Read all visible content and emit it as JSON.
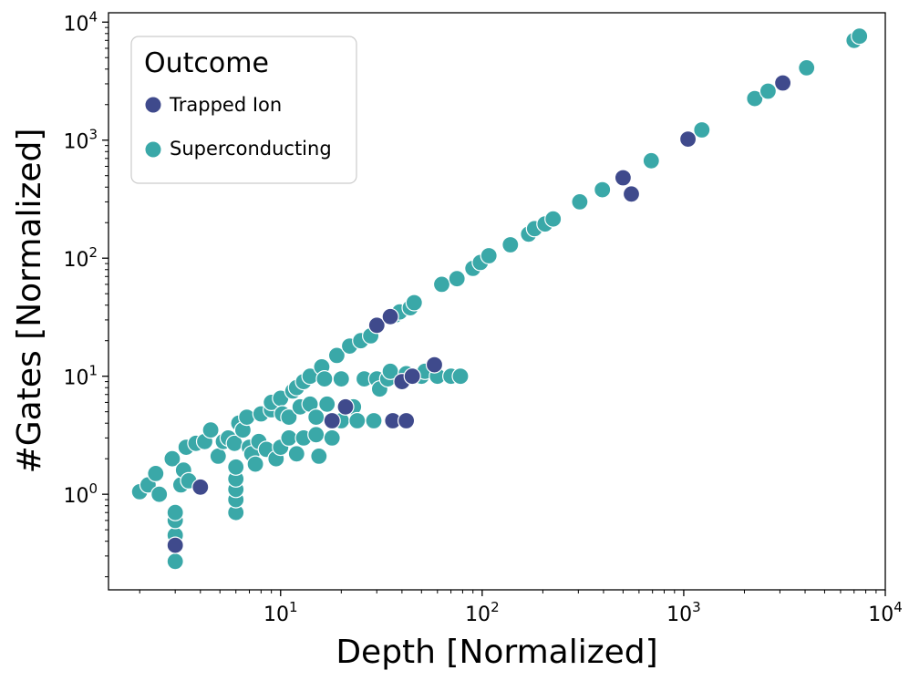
{
  "chart_data": {
    "type": "scatter",
    "title": "",
    "xlabel": "Depth [Normalized]",
    "ylabel": "#Gates [Normalized]",
    "xscale": "log",
    "yscale": "log",
    "xlim": [
      1.4,
      10000
    ],
    "ylim": [
      0.155,
      12000
    ],
    "x_ticks": [
      {
        "base": "10",
        "exp": "1",
        "value": 10
      },
      {
        "base": "10",
        "exp": "2",
        "value": 100
      },
      {
        "base": "10",
        "exp": "3",
        "value": 1000
      },
      {
        "base": "10",
        "exp": "4",
        "value": 10000
      }
    ],
    "y_ticks": [
      {
        "base": "10",
        "exp": "0",
        "value": 1
      },
      {
        "base": "10",
        "exp": "1",
        "value": 10
      },
      {
        "base": "10",
        "exp": "2",
        "value": 100
      },
      {
        "base": "10",
        "exp": "3",
        "value": 1000
      },
      {
        "base": "10",
        "exp": "4",
        "value": 10000
      }
    ],
    "grid": false,
    "legend": {
      "title": "Outcome",
      "position": "top-left",
      "entries": [
        {
          "label": "Trapped Ion",
          "series": "trapped_ion"
        },
        {
          "label": "Superconducting",
          "series": "superconducting"
        }
      ]
    },
    "series": [
      {
        "id": "superconducting",
        "name": "Superconducting",
        "color": "#3aa8a8",
        "points": [
          [
            2.0,
            1.05
          ],
          [
            2.2,
            1.2
          ],
          [
            2.4,
            1.5
          ],
          [
            2.5,
            1.0
          ],
          [
            2.9,
            2.0
          ],
          [
            3.0,
            0.27
          ],
          [
            3.0,
            0.45
          ],
          [
            3.0,
            0.6
          ],
          [
            3.0,
            0.7
          ],
          [
            3.2,
            1.2
          ],
          [
            3.3,
            1.6
          ],
          [
            3.4,
            2.5
          ],
          [
            3.5,
            1.3
          ],
          [
            3.8,
            2.7
          ],
          [
            4.2,
            2.8
          ],
          [
            4.5,
            3.5
          ],
          [
            4.9,
            2.1
          ],
          [
            5.2,
            2.8
          ],
          [
            5.5,
            3.0
          ],
          [
            5.9,
            2.7
          ],
          [
            6.0,
            0.7
          ],
          [
            6.0,
            0.9
          ],
          [
            6.0,
            1.1
          ],
          [
            6.0,
            1.35
          ],
          [
            6.0,
            1.7
          ],
          [
            6.2,
            4.0
          ],
          [
            6.5,
            3.5
          ],
          [
            6.8,
            4.5
          ],
          [
            7.0,
            2.5
          ],
          [
            7.2,
            2.2
          ],
          [
            7.5,
            1.8
          ],
          [
            7.8,
            2.8
          ],
          [
            8.0,
            4.8
          ],
          [
            8.5,
            2.4
          ],
          [
            9.0,
            5.2
          ],
          [
            9.0,
            6.0
          ],
          [
            9.5,
            2.0
          ],
          [
            10.0,
            6.5
          ],
          [
            10.0,
            2.5
          ],
          [
            10.2,
            4.8
          ],
          [
            11.0,
            3.0
          ],
          [
            11.0,
            4.5
          ],
          [
            11.5,
            7.5
          ],
          [
            12.0,
            8.0
          ],
          [
            12.0,
            2.2
          ],
          [
            12.5,
            5.5
          ],
          [
            13.0,
            3.0
          ],
          [
            13.0,
            9.0
          ],
          [
            14.0,
            10.0
          ],
          [
            14.0,
            5.8
          ],
          [
            15.0,
            4.5
          ],
          [
            15.0,
            3.2
          ],
          [
            15.5,
            2.1
          ],
          [
            16.0,
            12.0
          ],
          [
            16.5,
            9.5
          ],
          [
            17.0,
            5.8
          ],
          [
            18.0,
            3.0
          ],
          [
            19.0,
            15.0
          ],
          [
            20.0,
            4.2
          ],
          [
            20.0,
            9.5
          ],
          [
            22.0,
            18.0
          ],
          [
            23.0,
            5.5
          ],
          [
            24.0,
            4.2
          ],
          [
            25.0,
            20.0
          ],
          [
            26.0,
            9.5
          ],
          [
            28.0,
            22.0
          ],
          [
            29.0,
            4.2
          ],
          [
            30.0,
            9.5
          ],
          [
            31.0,
            7.8
          ],
          [
            34.0,
            9.5
          ],
          [
            35.0,
            11.0
          ],
          [
            37.0,
            33.0
          ],
          [
            39.0,
            35.0
          ],
          [
            42.0,
            10.5
          ],
          [
            44.0,
            38.0
          ],
          [
            46.0,
            42.0
          ],
          [
            47.0,
            10.0
          ],
          [
            50.0,
            10.0
          ],
          [
            52.0,
            11.0
          ],
          [
            60.0,
            10.0
          ],
          [
            63.0,
            60.0
          ],
          [
            70.0,
            10.0
          ],
          [
            75.0,
            67.0
          ],
          [
            78.0,
            10.0
          ],
          [
            90.0,
            82.0
          ],
          [
            98.0,
            92.0
          ],
          [
            108.0,
            105.0
          ],
          [
            138.0,
            130.0
          ],
          [
            170.0,
            160.0
          ],
          [
            182.0,
            178.0
          ],
          [
            205.0,
            195.0
          ],
          [
            225.0,
            215.0
          ],
          [
            305.0,
            300.0
          ],
          [
            395.0,
            380.0
          ],
          [
            690.0,
            670.0
          ],
          [
            1230.0,
            1220.0
          ],
          [
            2250.0,
            2250.0
          ],
          [
            2620.0,
            2600.0
          ],
          [
            4070.0,
            4100.0
          ],
          [
            7000.0,
            7000.0
          ],
          [
            7450.0,
            7600.0
          ]
        ]
      },
      {
        "id": "trapped_ion",
        "name": "Trapped Ion",
        "color": "#3f4a8c",
        "points": [
          [
            3.0,
            0.37
          ],
          [
            4.0,
            1.15
          ],
          [
            18.0,
            4.2
          ],
          [
            21.0,
            5.5
          ],
          [
            30.0,
            27.0
          ],
          [
            35.0,
            32.0
          ],
          [
            36.0,
            4.2
          ],
          [
            40.0,
            9.0
          ],
          [
            42.0,
            4.2
          ],
          [
            45.0,
            10.0
          ],
          [
            58.0,
            12.5
          ],
          [
            500.0,
            480.0
          ],
          [
            550.0,
            350.0
          ],
          [
            1050.0,
            1020.0
          ],
          [
            3100.0,
            3050.0
          ]
        ]
      }
    ]
  }
}
